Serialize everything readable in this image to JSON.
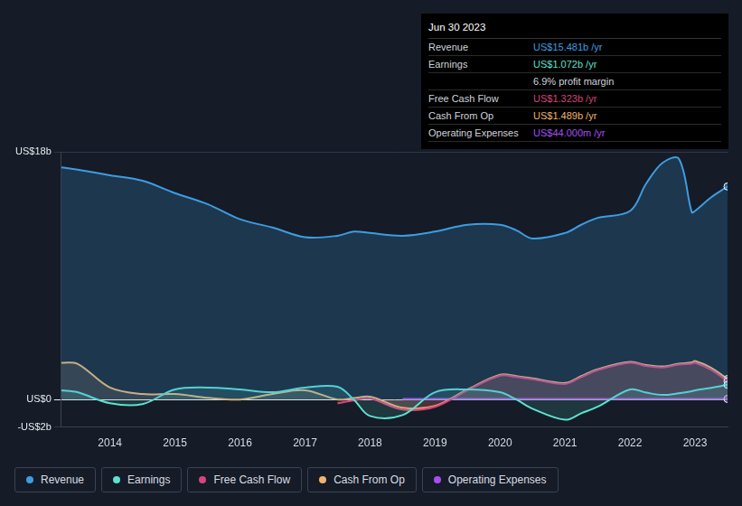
{
  "chart_data": {
    "type": "line",
    "x": [
      2013.25,
      2013.5,
      2014,
      2014.5,
      2015,
      2015.5,
      2016,
      2016.5,
      2017,
      2017.5,
      2017.75,
      2018,
      2018.5,
      2019,
      2019.5,
      2020,
      2020.25,
      2020.5,
      2021,
      2021.25,
      2021.5,
      2022,
      2022.25,
      2022.5,
      2022.75,
      2022.95,
      2023,
      2023.25,
      2023.5
    ],
    "series": [
      {
        "name": "Revenue",
        "color": "#3d9de0",
        "values": [
          16.87,
          16.7,
          16.3,
          15.9,
          15.0,
          14.2,
          13.1,
          12.5,
          11.8,
          11.9,
          12.2,
          12.1,
          11.9,
          12.2,
          12.7,
          12.7,
          12.3,
          11.7,
          12.1,
          12.7,
          13.2,
          13.7,
          15.7,
          17.2,
          17.5,
          13.6,
          13.7,
          14.7,
          15.481
        ]
      },
      {
        "name": "Earnings",
        "color": "#5ce1cf",
        "values": [
          0.67,
          0.53,
          -0.27,
          -0.33,
          0.73,
          0.87,
          0.73,
          0.53,
          0.87,
          0.93,
          0,
          -1.2,
          -1.13,
          0.53,
          0.73,
          0.53,
          0,
          -0.67,
          -1.47,
          -1.0,
          -0.53,
          0.73,
          0.5,
          0.33,
          0.45,
          0.6,
          0.67,
          0.85,
          1.072
        ]
      },
      {
        "name": "Free Cash Flow",
        "color": "#d6457e",
        "values": [
          null,
          null,
          null,
          null,
          null,
          null,
          null,
          null,
          null,
          -0.27,
          -0.07,
          0.07,
          -0.73,
          -0.53,
          0.67,
          1.73,
          1.63,
          1.47,
          1.13,
          1.63,
          2.13,
          2.67,
          2.43,
          2.33,
          2.53,
          2.6,
          2.67,
          2.15,
          1.323
        ]
      },
      {
        "name": "Cash From Op",
        "color": "#f1b46a",
        "values": [
          2.67,
          2.6,
          0.87,
          0.4,
          0.4,
          0.13,
          0,
          0.4,
          0.67,
          0,
          0.1,
          0.2,
          -0.6,
          -0.47,
          0.73,
          1.8,
          1.7,
          1.53,
          1.2,
          1.7,
          2.2,
          2.73,
          2.5,
          2.4,
          2.6,
          2.7,
          2.8,
          2.3,
          1.489
        ]
      },
      {
        "name": "Operating Expenses",
        "color": "#a64ff0",
        "values": [
          null,
          null,
          null,
          null,
          null,
          null,
          null,
          null,
          null,
          null,
          null,
          null,
          0.04,
          0.04,
          0.04,
          0.04,
          0.04,
          0.04,
          0.04,
          0.04,
          0.04,
          0.04,
          0.04,
          0.04,
          0.04,
          0.04,
          0.04,
          0.044,
          0.044
        ]
      }
    ],
    "xlim": [
      2013.25,
      2023.5
    ],
    "xticks": [
      2014,
      2015,
      2016,
      2017,
      2018,
      2019,
      2020,
      2021,
      2022,
      2023
    ],
    "ylim": [
      -2,
      18
    ],
    "yticks": [
      {
        "value": -2,
        "label": "-US$2b"
      },
      {
        "value": 0,
        "label": "US$0"
      },
      {
        "value": 18,
        "label": "US$18b"
      }
    ],
    "grid": true,
    "legend": "bottom",
    "annotations": {
      "date": "Jun 30 2023",
      "rows": [
        {
          "label": "Revenue",
          "value": "US$15.481b /yr"
        },
        {
          "label": "Earnings",
          "value": "US$1.072b /yr"
        },
        {
          "value": "6.9% profit margin"
        },
        {
          "label": "Free Cash Flow",
          "value": "US$1.323b /yr"
        },
        {
          "label": "Cash From Op",
          "value": "US$1.489b /yr"
        },
        {
          "label": "Operating Expenses",
          "value": "US$44.000m /yr"
        }
      ]
    }
  }
}
